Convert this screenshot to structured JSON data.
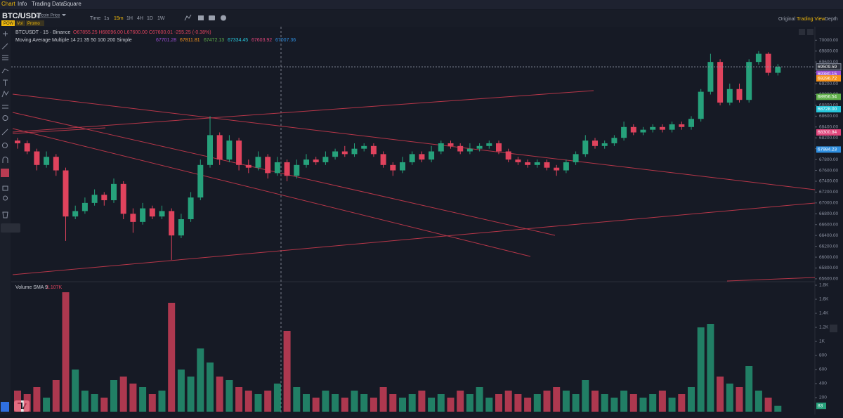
{
  "menu": [
    "Chart",
    "Info",
    "Trading Data",
    "Square"
  ],
  "toolbar": {
    "symbol": "BTC/USDT",
    "source": "Bitcoin Price",
    "intervals": [
      "Time",
      "1s",
      "15m",
      "1H",
      "4H",
      "1D",
      "1W"
    ],
    "views": [
      "Original",
      "Trading View",
      "Depth"
    ]
  },
  "badges": [
    "POW",
    "Vol",
    "Promo"
  ],
  "chart_data": [
    {
      "type": "candlestick",
      "legend": {
        "symbol_line": "BTCUSDT · 15 · Binance",
        "ohlc": "O67855.25 H68096.00 L67600.00 C67600.01 -255.25 (-0.38%)",
        "ma_title": "Moving Average Multiple 14 21 35 50 100 200 Simple",
        "ma_values": [
          {
            "text": "67701.28",
            "color": "#9c4fd6"
          },
          {
            "text": "67811.81",
            "color": "#f7931a"
          },
          {
            "text": "67472.13",
            "color": "#5fb04a"
          },
          {
            "text": "67334.45",
            "color": "#26c6da"
          },
          {
            "text": "67603.92",
            "color": "#e0457b"
          },
          {
            "text": "67007.36",
            "color": "#2f8fe0"
          }
        ]
      },
      "up_color": "#26a17b",
      "down_color": "#e0435d",
      "open": [
        68150,
        68100,
        67950,
        67700,
        67850,
        67600,
        66750,
        66850,
        67000,
        67150,
        67050,
        67350,
        66800,
        66650,
        66900,
        66750,
        66850,
        66400,
        66700,
        67100,
        67700,
        68250,
        67800,
        68150,
        67700,
        67650,
        67850,
        67550,
        67750,
        67500,
        67700,
        67800,
        67750,
        67850,
        67950,
        67900,
        68000,
        68050,
        67900,
        67700,
        67600,
        67750,
        67900,
        67800,
        67950,
        68100,
        68050,
        67950,
        68000,
        68050,
        68100,
        67950,
        67800,
        67750,
        67700,
        67750,
        67650,
        67600,
        67750,
        67900,
        68150,
        68050,
        68100,
        68200,
        68400,
        68300,
        68350,
        68400,
        68350,
        68450,
        68400,
        68550,
        69050,
        69600,
        68850,
        69100,
        68900,
        69600,
        69750,
        69400
      ],
      "high": [
        68200,
        68150,
        68000,
        67950,
        67900,
        67650,
        66950,
        67100,
        67250,
        67200,
        67450,
        67400,
        66900,
        67000,
        66950,
        66950,
        66900,
        66800,
        67200,
        67800,
        68600,
        68300,
        68250,
        68200,
        67800,
        67950,
        67900,
        67850,
        67800,
        67800,
        67900,
        67850,
        67950,
        68000,
        68050,
        68100,
        68100,
        68100,
        67950,
        67750,
        67850,
        67950,
        67950,
        68050,
        68150,
        68150,
        68100,
        68100,
        68100,
        68150,
        68150,
        68000,
        67850,
        67800,
        67800,
        67800,
        67700,
        67800,
        67950,
        68250,
        68200,
        68150,
        68250,
        68500,
        68450,
        68400,
        68450,
        68450,
        68500,
        68500,
        68600,
        69100,
        69750,
        69650,
        69200,
        69200,
        69650,
        69800,
        69780,
        69560
      ],
      "low": [
        68000,
        67900,
        67600,
        67650,
        67500,
        66300,
        66700,
        66800,
        66950,
        66950,
        67000,
        66700,
        66450,
        66600,
        66700,
        66700,
        65950,
        66350,
        66650,
        67050,
        67650,
        67700,
        67750,
        67600,
        67550,
        67600,
        67450,
        67500,
        67400,
        67450,
        67650,
        67700,
        67700,
        67800,
        67850,
        67850,
        67950,
        67850,
        67650,
        67500,
        67550,
        67700,
        67750,
        67750,
        67900,
        68000,
        67900,
        67900,
        67950,
        68000,
        67900,
        67750,
        67700,
        67650,
        67650,
        67600,
        67500,
        67550,
        67700,
        67850,
        68000,
        68000,
        68050,
        68150,
        68250,
        68250,
        68300,
        68300,
        68300,
        68350,
        68350,
        68500,
        69000,
        68800,
        68800,
        68850,
        68850,
        69550,
        69350,
        69350
      ],
      "close": [
        68100,
        67950,
        67700,
        67850,
        67600,
        66750,
        66850,
        67000,
        67150,
        67050,
        67350,
        66800,
        66650,
        66900,
        66750,
        66850,
        66400,
        66700,
        67100,
        67700,
        68250,
        67800,
        68150,
        67700,
        67650,
        67850,
        67550,
        67750,
        67500,
        67700,
        67800,
        67750,
        67850,
        67950,
        67900,
        68000,
        68050,
        67900,
        67700,
        67600,
        67750,
        67900,
        67800,
        67950,
        68100,
        68050,
        67950,
        68000,
        68050,
        68100,
        67950,
        67800,
        67750,
        67700,
        67750,
        67650,
        67600,
        67750,
        67900,
        68150,
        68050,
        68100,
        68200,
        68400,
        68300,
        68350,
        68400,
        68350,
        68450,
        68400,
        68550,
        69050,
        69600,
        68850,
        69100,
        68900,
        69600,
        69750,
        69400,
        69509.59
      ],
      "ylim": [
        65560,
        70250
      ],
      "yticks": [
        {
          "value": 65600,
          "label": "65600.00"
        },
        {
          "value": 65800,
          "label": "65800.00"
        },
        {
          "value": 66000,
          "label": "66000.00"
        },
        {
          "value": 66200,
          "label": "66200.00"
        },
        {
          "value": 66400,
          "label": "66400.00"
        },
        {
          "value": 66600,
          "label": "66600.00"
        },
        {
          "value": 66800,
          "label": "66800.00"
        },
        {
          "value": 67000,
          "label": "67000.00"
        },
        {
          "value": 67200,
          "label": "67200.00"
        },
        {
          "value": 67400,
          "label": "67400.00"
        },
        {
          "value": 67600,
          "label": "67600.00"
        },
        {
          "value": 67800,
          "label": "67800.00"
        },
        {
          "value": 68000,
          "label": "68000.00"
        },
        {
          "value": 68200,
          "label": "68200.00"
        },
        {
          "value": 68400,
          "label": "68400.00"
        },
        {
          "value": 68600,
          "label": "68600.00"
        },
        {
          "value": 68800,
          "label": "68800.00"
        },
        {
          "value": 69000,
          "label": "69000.00"
        },
        {
          "value": 69200,
          "label": "69200.00"
        },
        {
          "value": 69400,
          "label": "69400.00"
        },
        {
          "value": 69600,
          "label": "69600.00"
        },
        {
          "value": 69800,
          "label": "69800.00"
        },
        {
          "value": 70000,
          "label": "70000.00"
        }
      ],
      "price_tags": [
        {
          "value": 69509.59,
          "label": "69509.59",
          "color": "#2b2f3a"
        },
        {
          "value": 69380.15,
          "label": "69380.15",
          "color": "#9c4fd6"
        },
        {
          "value": 69296.72,
          "label": "69296.72",
          "color": "#f7931a"
        },
        {
          "value": 68956.54,
          "label": "68956.54",
          "color": "#5fb04a"
        },
        {
          "value": 68728,
          "label": "68728.00",
          "color": "#26c6da"
        },
        {
          "value": 68300.84,
          "label": "68300.84",
          "color": "#e0457b"
        },
        {
          "value": 67984.23,
          "label": "67984.23",
          "color": "#2f8fe0"
        }
      ]
    },
    {
      "type": "bar",
      "title": "Volume SMA 9",
      "value_text": "1.107K",
      "values": [
        300,
        250,
        350,
        200,
        450,
        1700,
        600,
        300,
        250,
        200,
        450,
        500,
        400,
        350,
        250,
        300,
        1550,
        600,
        500,
        900,
        700,
        500,
        450,
        350,
        300,
        250,
        300,
        400,
        1150,
        350,
        250,
        200,
        300,
        250,
        200,
        300,
        250,
        200,
        350,
        250,
        200,
        250,
        300,
        200,
        250,
        200,
        300,
        250,
        350,
        200,
        250,
        300,
        250,
        200,
        250,
        300,
        350,
        300,
        250,
        450,
        300,
        250,
        200,
        300,
        250,
        200,
        250,
        300,
        200,
        250,
        350,
        1200,
        1250,
        500,
        400,
        350,
        650,
        300,
        200,
        83
      ],
      "ylim": [
        0,
        1840
      ],
      "yticks": [
        200,
        400,
        600,
        800,
        {
          "value": 1000,
          "label": "1K"
        },
        {
          "value": 1200,
          "label": "1.2K"
        },
        {
          "value": 1400,
          "label": "1.4K"
        },
        {
          "value": 1600,
          "label": "1.6K"
        },
        {
          "value": 1800,
          "label": "1.8K"
        }
      ]
    }
  ]
}
